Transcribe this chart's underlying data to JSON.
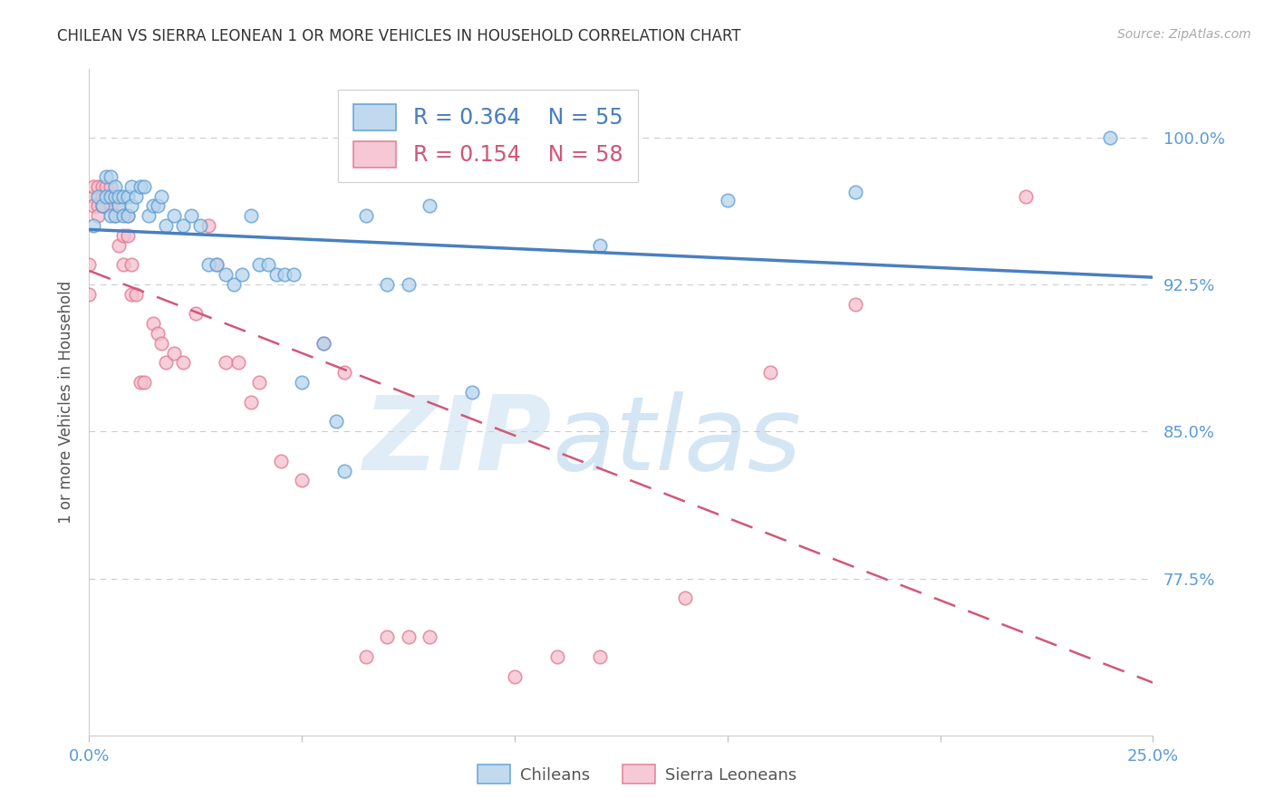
{
  "title": "CHILEAN VS SIERRA LEONEAN 1 OR MORE VEHICLES IN HOUSEHOLD CORRELATION CHART",
  "source": "Source: ZipAtlas.com",
  "ylabel": "1 or more Vehicles in Household",
  "xlim": [
    0.0,
    0.25
  ],
  "ylim": [
    0.695,
    1.035
  ],
  "xticks": [
    0.0,
    0.05,
    0.1,
    0.15,
    0.2,
    0.25
  ],
  "xticklabels": [
    "0.0%",
    "",
    "",
    "",
    "",
    "25.0%"
  ],
  "yticks": [
    0.775,
    0.85,
    0.925,
    1.0
  ],
  "yticklabels": [
    "77.5%",
    "85.0%",
    "92.5%",
    "100.0%"
  ],
  "legend_r1": "0.364",
  "legend_n1": "55",
  "legend_r2": "0.154",
  "legend_n2": "58",
  "color_chilean_fill": "#b8d4ec",
  "color_chilean_edge": "#5a9fd4",
  "color_sierra_fill": "#f5c0d0",
  "color_sierra_edge": "#e07890",
  "color_line_chilean": "#4a7fc0",
  "color_line_sierra": "#d05878",
  "color_axis_text": "#5b9bd5",
  "marker_size": 110,
  "chilean_x": [
    0.001,
    0.002,
    0.003,
    0.004,
    0.004,
    0.005,
    0.005,
    0.005,
    0.006,
    0.006,
    0.006,
    0.007,
    0.007,
    0.008,
    0.008,
    0.009,
    0.009,
    0.01,
    0.01,
    0.011,
    0.012,
    0.013,
    0.014,
    0.015,
    0.016,
    0.017,
    0.018,
    0.02,
    0.022,
    0.024,
    0.026,
    0.028,
    0.03,
    0.032,
    0.034,
    0.036,
    0.038,
    0.04,
    0.042,
    0.044,
    0.046,
    0.048,
    0.05,
    0.055,
    0.058,
    0.06,
    0.065,
    0.07,
    0.075,
    0.08,
    0.09,
    0.12,
    0.15,
    0.18,
    0.24
  ],
  "chilean_y": [
    0.955,
    0.97,
    0.965,
    0.97,
    0.98,
    0.96,
    0.97,
    0.98,
    0.97,
    0.96,
    0.975,
    0.965,
    0.97,
    0.97,
    0.96,
    0.96,
    0.97,
    0.965,
    0.975,
    0.97,
    0.975,
    0.975,
    0.96,
    0.965,
    0.965,
    0.97,
    0.955,
    0.96,
    0.955,
    0.96,
    0.955,
    0.935,
    0.935,
    0.93,
    0.925,
    0.93,
    0.96,
    0.935,
    0.935,
    0.93,
    0.93,
    0.93,
    0.875,
    0.895,
    0.855,
    0.83,
    0.96,
    0.925,
    0.925,
    0.965,
    0.87,
    0.945,
    0.968,
    0.972,
    1.0
  ],
  "sierra_x": [
    0.0,
    0.0,
    0.001,
    0.001,
    0.001,
    0.002,
    0.002,
    0.002,
    0.003,
    0.003,
    0.003,
    0.003,
    0.004,
    0.004,
    0.005,
    0.005,
    0.005,
    0.006,
    0.006,
    0.007,
    0.007,
    0.008,
    0.008,
    0.009,
    0.009,
    0.01,
    0.01,
    0.011,
    0.012,
    0.013,
    0.015,
    0.016,
    0.017,
    0.018,
    0.02,
    0.022,
    0.025,
    0.028,
    0.03,
    0.032,
    0.035,
    0.038,
    0.04,
    0.045,
    0.05,
    0.055,
    0.06,
    0.065,
    0.07,
    0.075,
    0.08,
    0.1,
    0.11,
    0.12,
    0.14,
    0.16,
    0.18,
    0.22
  ],
  "sierra_y": [
    0.935,
    0.92,
    0.97,
    0.975,
    0.965,
    0.965,
    0.975,
    0.96,
    0.975,
    0.965,
    0.965,
    0.97,
    0.97,
    0.975,
    0.965,
    0.965,
    0.975,
    0.97,
    0.96,
    0.965,
    0.945,
    0.95,
    0.935,
    0.95,
    0.96,
    0.935,
    0.92,
    0.92,
    0.875,
    0.875,
    0.905,
    0.9,
    0.895,
    0.885,
    0.89,
    0.885,
    0.91,
    0.955,
    0.935,
    0.885,
    0.885,
    0.865,
    0.875,
    0.835,
    0.825,
    0.895,
    0.88,
    0.735,
    0.745,
    0.745,
    0.745,
    0.725,
    0.735,
    0.735,
    0.765,
    0.88,
    0.915,
    0.97
  ],
  "watermark_zip": "ZIP",
  "watermark_atlas": "atlas",
  "background_color": "#ffffff",
  "grid_color": "#cccccc"
}
